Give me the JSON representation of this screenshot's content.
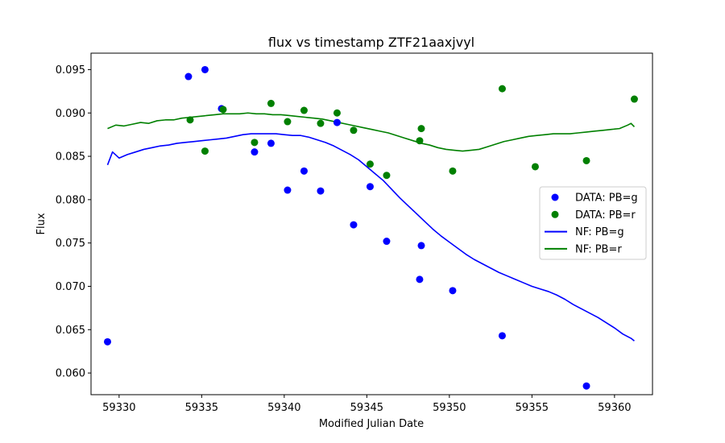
{
  "chart_data": {
    "type": "scatter",
    "title": "flux vs timestamp ZTF21aaxjvyl",
    "xlabel": "Modified Julian Date",
    "ylabel": "Flux",
    "xlim": [
      59328.3,
      59362.3
    ],
    "ylim": [
      0.0575,
      0.0969
    ],
    "xticks": [
      "59330",
      "59335",
      "59340",
      "59345",
      "59350",
      "59355",
      "59360"
    ],
    "yticks": [
      "0.060",
      "0.065",
      "0.070",
      "0.075",
      "0.080",
      "0.085",
      "0.090",
      "0.095"
    ],
    "legend": {
      "placement": "center-right",
      "entries": [
        "DATA: PB=g",
        "DATA: PB=r",
        "NF: PB=g",
        "NF: PB=r"
      ]
    },
    "colors": {
      "g": "#0000ff",
      "r": "#008000"
    },
    "grid": false,
    "scatter_series": [
      {
        "name": "DATA: PB=g",
        "color": "#0000ff",
        "points": [
          [
            59329.3,
            0.0636
          ],
          [
            59334.2,
            0.0942
          ],
          [
            59335.2,
            0.095
          ],
          [
            59336.2,
            0.0905
          ],
          [
            59338.2,
            0.0855
          ],
          [
            59339.2,
            0.0865
          ],
          [
            59340.2,
            0.0811
          ],
          [
            59341.2,
            0.0833
          ],
          [
            59342.2,
            0.081
          ],
          [
            59343.2,
            0.0889
          ],
          [
            59344.2,
            0.0771
          ],
          [
            59345.2,
            0.0815
          ],
          [
            59346.2,
            0.0752
          ],
          [
            59348.2,
            0.0708
          ],
          [
            59348.3,
            0.0747
          ],
          [
            59350.2,
            0.0695
          ],
          [
            59353.2,
            0.0643
          ],
          [
            59358.3,
            0.0585
          ]
        ]
      },
      {
        "name": "DATA: PB=r",
        "color": "#008000",
        "points": [
          [
            59334.3,
            0.0892
          ],
          [
            59335.2,
            0.0856
          ],
          [
            59336.3,
            0.0904
          ],
          [
            59338.2,
            0.0866
          ],
          [
            59339.2,
            0.0911
          ],
          [
            59340.2,
            0.089
          ],
          [
            59341.2,
            0.0903
          ],
          [
            59342.2,
            0.0888
          ],
          [
            59343.2,
            0.09
          ],
          [
            59344.2,
            0.088
          ],
          [
            59345.2,
            0.0841
          ],
          [
            59346.2,
            0.0828
          ],
          [
            59348.2,
            0.0868
          ],
          [
            59348.3,
            0.0882
          ],
          [
            59350.2,
            0.0833
          ],
          [
            59353.2,
            0.0928
          ],
          [
            59355.2,
            0.0838
          ],
          [
            59358.3,
            0.0845
          ],
          [
            59361.2,
            0.0916
          ]
        ]
      }
    ],
    "line_series": [
      {
        "name": "NF: PB=g",
        "color": "#0000ff",
        "points": [
          [
            59329.3,
            0.084
          ],
          [
            59329.6,
            0.0855
          ],
          [
            59330.0,
            0.0848
          ],
          [
            59330.5,
            0.0852
          ],
          [
            59331.0,
            0.0855
          ],
          [
            59331.5,
            0.0858
          ],
          [
            59332.0,
            0.086
          ],
          [
            59332.5,
            0.0862
          ],
          [
            59333.0,
            0.0863
          ],
          [
            59333.5,
            0.0865
          ],
          [
            59334.0,
            0.0866
          ],
          [
            59334.5,
            0.0867
          ],
          [
            59335.0,
            0.0868
          ],
          [
            59335.5,
            0.0869
          ],
          [
            59336.0,
            0.087
          ],
          [
            59336.5,
            0.0871
          ],
          [
            59337.0,
            0.0873
          ],
          [
            59337.5,
            0.0875
          ],
          [
            59338.0,
            0.0876
          ],
          [
            59338.5,
            0.0876
          ],
          [
            59339.0,
            0.0876
          ],
          [
            59339.5,
            0.0876
          ],
          [
            59340.0,
            0.0875
          ],
          [
            59340.5,
            0.0874
          ],
          [
            59341.0,
            0.0874
          ],
          [
            59341.5,
            0.0872
          ],
          [
            59342.0,
            0.0869
          ],
          [
            59342.5,
            0.0866
          ],
          [
            59343.0,
            0.0862
          ],
          [
            59343.5,
            0.0857
          ],
          [
            59344.0,
            0.0852
          ],
          [
            59344.5,
            0.0846
          ],
          [
            59345.0,
            0.0838
          ],
          [
            59345.5,
            0.083
          ],
          [
            59346.0,
            0.0822
          ],
          [
            59346.5,
            0.0812
          ],
          [
            59347.0,
            0.0802
          ],
          [
            59347.5,
            0.0793
          ],
          [
            59348.0,
            0.0784
          ],
          [
            59348.5,
            0.0775
          ],
          [
            59349.0,
            0.0766
          ],
          [
            59349.5,
            0.0758
          ],
          [
            59350.0,
            0.0751
          ],
          [
            59350.5,
            0.0744
          ],
          [
            59351.0,
            0.0737
          ],
          [
            59351.5,
            0.0731
          ],
          [
            59352.0,
            0.0726
          ],
          [
            59352.5,
            0.0721
          ],
          [
            59353.0,
            0.0716
          ],
          [
            59353.5,
            0.0712
          ],
          [
            59354.0,
            0.0708
          ],
          [
            59354.5,
            0.0704
          ],
          [
            59355.0,
            0.07
          ],
          [
            59355.5,
            0.0697
          ],
          [
            59356.0,
            0.0694
          ],
          [
            59356.5,
            0.069
          ],
          [
            59357.0,
            0.0685
          ],
          [
            59357.5,
            0.0679
          ],
          [
            59358.0,
            0.0674
          ],
          [
            59358.5,
            0.0669
          ],
          [
            59359.0,
            0.0664
          ],
          [
            59359.5,
            0.0658
          ],
          [
            59360.0,
            0.0652
          ],
          [
            59360.5,
            0.0645
          ],
          [
            59361.0,
            0.064
          ],
          [
            59361.2,
            0.0637
          ]
        ]
      },
      {
        "name": "NF: PB=r",
        "color": "#008000",
        "points": [
          [
            59329.3,
            0.0882
          ],
          [
            59329.8,
            0.0886
          ],
          [
            59330.3,
            0.0885
          ],
          [
            59330.8,
            0.0887
          ],
          [
            59331.3,
            0.0889
          ],
          [
            59331.8,
            0.0888
          ],
          [
            59332.3,
            0.0891
          ],
          [
            59332.8,
            0.0892
          ],
          [
            59333.3,
            0.0892
          ],
          [
            59333.8,
            0.0894
          ],
          [
            59334.3,
            0.0895
          ],
          [
            59334.8,
            0.0896
          ],
          [
            59335.3,
            0.0897
          ],
          [
            59335.8,
            0.0898
          ],
          [
            59336.3,
            0.0899
          ],
          [
            59336.8,
            0.0899
          ],
          [
            59337.3,
            0.0899
          ],
          [
            59337.8,
            0.09
          ],
          [
            59338.3,
            0.0899
          ],
          [
            59338.8,
            0.0899
          ],
          [
            59339.3,
            0.0898
          ],
          [
            59339.8,
            0.0898
          ],
          [
            59340.3,
            0.0897
          ],
          [
            59340.8,
            0.0896
          ],
          [
            59341.3,
            0.0895
          ],
          [
            59341.8,
            0.0894
          ],
          [
            59342.3,
            0.0893
          ],
          [
            59342.8,
            0.0891
          ],
          [
            59343.3,
            0.0889
          ],
          [
            59343.8,
            0.0887
          ],
          [
            59344.3,
            0.0885
          ],
          [
            59344.8,
            0.0883
          ],
          [
            59345.3,
            0.0881
          ],
          [
            59345.8,
            0.0879
          ],
          [
            59346.3,
            0.0877
          ],
          [
            59346.8,
            0.0874
          ],
          [
            59347.3,
            0.0871
          ],
          [
            59347.8,
            0.0868
          ],
          [
            59348.3,
            0.0865
          ],
          [
            59348.8,
            0.0863
          ],
          [
            59349.3,
            0.086
          ],
          [
            59349.8,
            0.0858
          ],
          [
            59350.3,
            0.0857
          ],
          [
            59350.8,
            0.0856
          ],
          [
            59351.3,
            0.0857
          ],
          [
            59351.8,
            0.0858
          ],
          [
            59352.3,
            0.0861
          ],
          [
            59352.8,
            0.0864
          ],
          [
            59353.3,
            0.0867
          ],
          [
            59353.8,
            0.0869
          ],
          [
            59354.3,
            0.0871
          ],
          [
            59354.8,
            0.0873
          ],
          [
            59355.3,
            0.0874
          ],
          [
            59355.8,
            0.0875
          ],
          [
            59356.3,
            0.0876
          ],
          [
            59356.8,
            0.0876
          ],
          [
            59357.3,
            0.0876
          ],
          [
            59357.8,
            0.0877
          ],
          [
            59358.3,
            0.0878
          ],
          [
            59358.8,
            0.0879
          ],
          [
            59359.3,
            0.088
          ],
          [
            59359.8,
            0.0881
          ],
          [
            59360.3,
            0.0882
          ],
          [
            59360.8,
            0.0886
          ],
          [
            59361.0,
            0.0888
          ],
          [
            59361.2,
            0.0884
          ]
        ]
      }
    ]
  }
}
